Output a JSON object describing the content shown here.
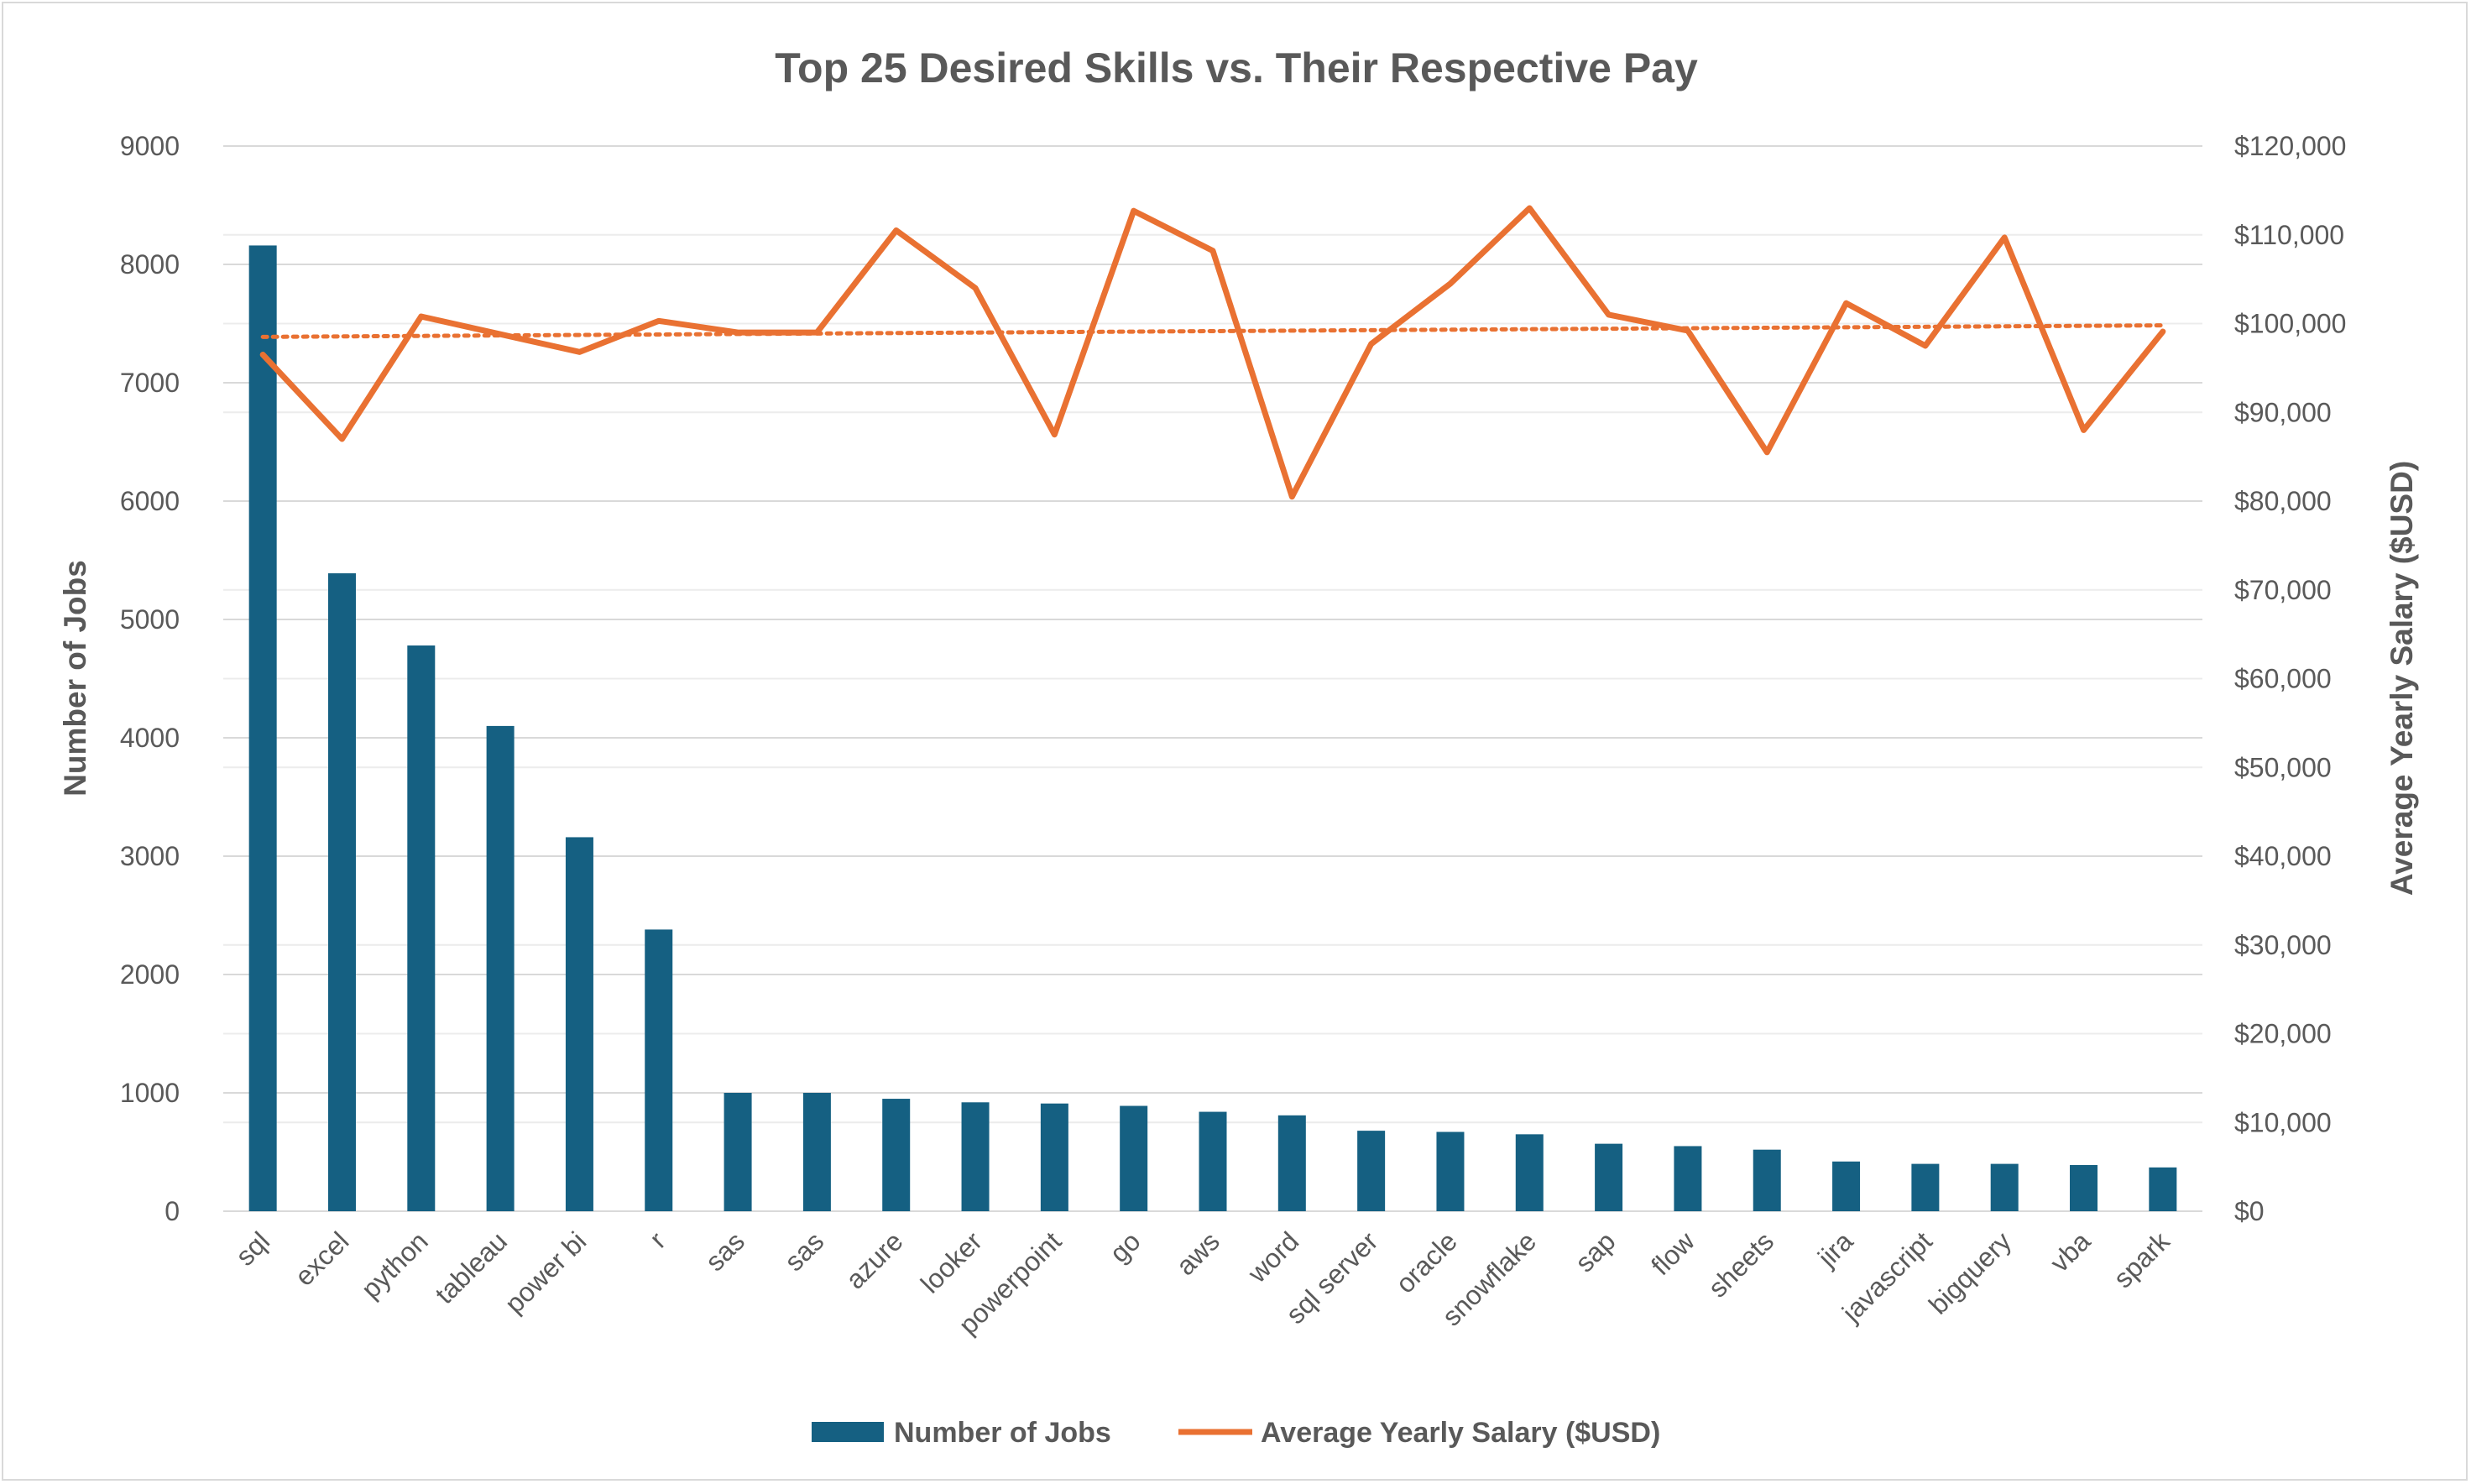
{
  "chart_data": {
    "type": "bar",
    "title": "Top 25 Desired Skills vs. Their Respective Pay",
    "ylabel": "Number of Jobs",
    "y2label": "Average Yearly Salary ($USD)",
    "xlabel": "",
    "ylim": [
      0,
      9000
    ],
    "y2lim": [
      0,
      120000
    ],
    "yticks": [
      "0",
      "1000",
      "2000",
      "3000",
      "4000",
      "5000",
      "6000",
      "7000",
      "8000",
      "9000"
    ],
    "y2ticks": [
      "$0",
      "$10,000",
      "$20,000",
      "$30,000",
      "$40,000",
      "$50,000",
      "$60,000",
      "$70,000",
      "$80,000",
      "$90,000",
      "$100,000",
      "$110,000",
      "$120,000"
    ],
    "grid": true,
    "legend_position": "bottom",
    "categories": [
      "sql",
      "excel",
      "python",
      "tableau",
      "power bi",
      "r",
      "sas",
      "sas",
      "azure",
      "looker",
      "powerpoint",
      "go",
      "aws",
      "word",
      "sql server",
      "oracle",
      "snowflake",
      "sap",
      "flow",
      "sheets",
      "jira",
      "javascript",
      "bigquery",
      "vba",
      "spark"
    ],
    "series": [
      {
        "name": "Number of Jobs",
        "type": "bar",
        "axis": "left",
        "color": "#156082",
        "values": [
          8160,
          5390,
          4780,
          4100,
          3160,
          2380,
          1000,
          1000,
          950,
          920,
          910,
          890,
          840,
          810,
          680,
          670,
          650,
          570,
          550,
          520,
          420,
          400,
          400,
          390,
          370
        ]
      },
      {
        "name": "Average Yearly Salary ($USD)",
        "type": "line",
        "axis": "right",
        "color": "#E97132",
        "values": [
          96500,
          87000,
          100800,
          98800,
          96800,
          100300,
          99000,
          99000,
          110500,
          104000,
          87500,
          112700,
          108200,
          80500,
          97700,
          104500,
          113000,
          101000,
          99200,
          85500,
          102300,
          97500,
          109700,
          88000,
          99100
        ],
        "trendline": {
          "type": "linear",
          "style": "dotted",
          "start": 98500,
          "end": 99800
        }
      }
    ]
  }
}
